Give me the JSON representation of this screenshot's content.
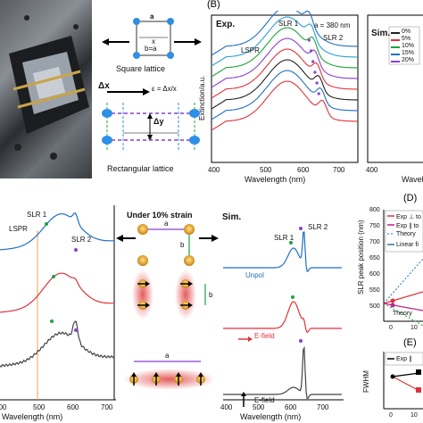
{
  "panel_letters": {
    "B": "(B)",
    "D": "(D)",
    "E": "(E)"
  },
  "panelA": {
    "square_caption": "Square lattice",
    "rect_caption": "Rectangular lattice",
    "label_a": "a",
    "label_x": "x",
    "label_b_eq_a": "b=a",
    "label_dx": "Δx",
    "label_dy": "Δy",
    "label_x2": "x",
    "strain_eq": "ε = Δx/x"
  },
  "panelB": {
    "exp_tag": "Exp.",
    "sim_tag": "Sim.",
    "lspr": "LSPR",
    "slr1": "SLR 1",
    "slr2": "SLR 2",
    "a_label": "a = 380 nm",
    "ylabel": "Extinction/a.u.",
    "xlabel": "Wavelength (nm)",
    "xlabel_cut": "Wavele",
    "xticks": [
      "400",
      "500",
      "600",
      "700"
    ],
    "xtick_sim": "400",
    "legend": [
      "0%",
      "5%",
      "10%",
      "15%",
      "20%"
    ]
  },
  "panelC": {
    "lspr": "LSPR",
    "slr1": "SLR 1",
    "slr2": "SLR 2",
    "xlabel": "Wavelength (nm)",
    "xticks": [
      "500",
      "600",
      "700"
    ],
    "xtick_left": "400",
    "strain_title": "Under 10% strain",
    "label_a": "a",
    "label_b": "b",
    "label_a2": "a"
  },
  "panelSim": {
    "title": "Sim.",
    "slr1": "SLR 1",
    "slr2": "SLR 2",
    "unpol": "Unpol",
    "efield1": "E-field",
    "efield2": "E-field",
    "xlabel": "Wavelength (nm)",
    "xticks": [
      "400",
      "500",
      "600",
      "700"
    ]
  },
  "panelD": {
    "ylabel": "SLR peak position (nm)",
    "yticks": [
      "800",
      "750",
      "700",
      "650",
      "600",
      "550",
      "500"
    ],
    "xticks": [
      "0",
      "10"
    ],
    "legend": [
      "Exp ⊥ to",
      "Exp ∥ to",
      "Theory",
      "Linear fi"
    ],
    "theory_bottom": "Theory"
  },
  "panelE": {
    "ylabel": "FWHM",
    "legend": "Exp ∥",
    "xticks": [
      "0",
      "10"
    ]
  },
  "colors": {
    "blue": "#1f6fc7",
    "red": "#e0323a",
    "gray": "#444444",
    "green": "#1ea43b",
    "purple": "#8a3fd0",
    "orange": "#f0a050"
  }
}
